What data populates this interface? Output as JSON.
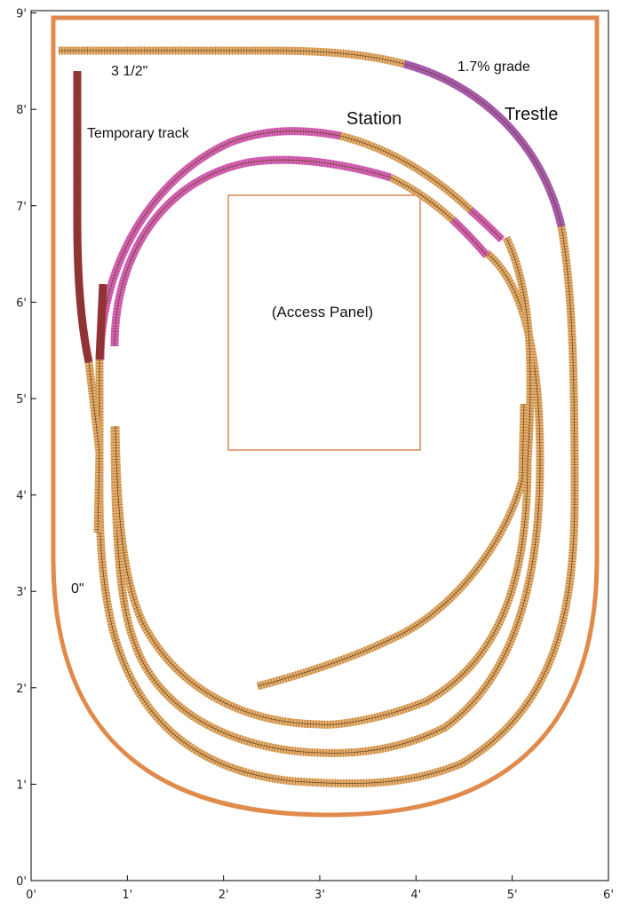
{
  "axes": {
    "x_ticks": [
      "0'",
      "1'",
      "2'",
      "3'",
      "4'",
      "5'",
      "6'"
    ],
    "y_ticks": [
      "0'",
      "1'",
      "2'",
      "3'",
      "4'",
      "5'",
      "6'",
      "7'",
      "8'",
      "9'"
    ],
    "unit": "feet"
  },
  "labels": {
    "temporary_track": "Temporary track",
    "station": "Station",
    "trestle": "Trestle",
    "grade": "1.7% grade",
    "height_top": "3 1/2\"",
    "height_zero": "0\"",
    "access_panel": "(Access Panel)"
  },
  "colors": {
    "benchwork": "#E08A4B",
    "track_tie": "#EDB36E",
    "track_rail": "#6b4a22",
    "station_track": "#E060C8",
    "grade_track": "#B05BC8",
    "temporary_track": "#9b2a3a",
    "access_panel": "#D98A50",
    "background": "#FFFFFF"
  },
  "legend_icons": {
    "benchwork": "benchwork-outline",
    "access": "access-panel-rect"
  }
}
